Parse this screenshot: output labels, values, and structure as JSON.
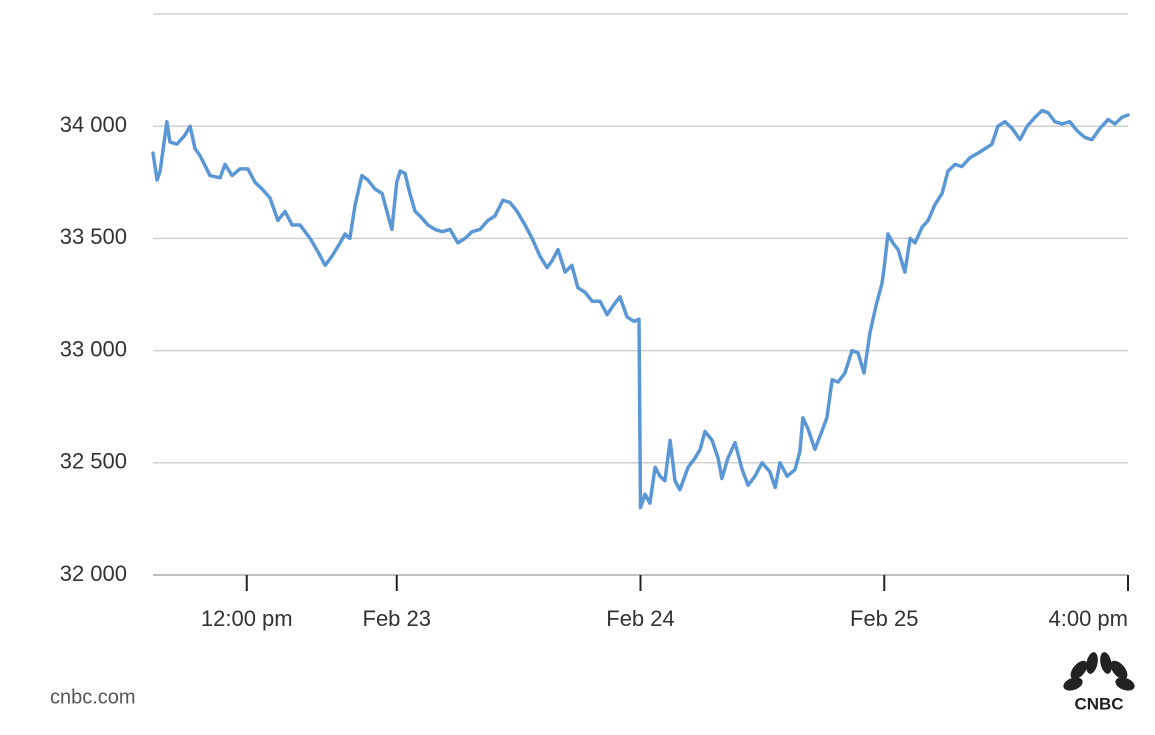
{
  "chart_data": {
    "type": "line",
    "color": "#5b97d5",
    "grid": true,
    "ylim": [
      32000,
      34500
    ],
    "yticks": [
      {
        "value": 32000,
        "label": "32 000"
      },
      {
        "value": 32500,
        "label": "32 500"
      },
      {
        "value": 33000,
        "label": "33 000"
      },
      {
        "value": 33500,
        "label": "33 500"
      },
      {
        "value": 34000,
        "label": "34 000"
      }
    ],
    "xlim": [
      0,
      26
    ],
    "xticks": [
      {
        "value": 2.5,
        "label": "12:00 pm"
      },
      {
        "value": 6.5,
        "label": "Feb 23"
      },
      {
        "value": 13,
        "label": "Feb 24"
      },
      {
        "value": 19.5,
        "label": "Feb 25"
      },
      {
        "value": 26,
        "label": "4:00 pm"
      }
    ],
    "x": [
      0,
      0.11,
      0.19,
      0.37,
      0.45,
      0.64,
      0.85,
      0.99,
      1.12,
      1.25,
      1.52,
      1.79,
      1.92,
      2.11,
      2.32,
      2.53,
      2.72,
      2.91,
      3.12,
      3.33,
      3.52,
      3.71,
      3.92,
      4.19,
      4.4,
      4.59,
      4.77,
      4.99,
      5.12,
      5.25,
      5.39,
      5.57,
      5.73,
      5.92,
      6.11,
      6.27,
      6.37,
      6.5,
      6.59,
      6.72,
      6.85,
      6.99,
      7.12,
      7.33,
      7.52,
      7.71,
      7.92,
      8.13,
      8.32,
      8.51,
      8.72,
      8.93,
      9.12,
      9.33,
      9.52,
      9.71,
      9.92,
      10.11,
      10.32,
      10.51,
      10.64,
      10.8,
      10.99,
      11.17,
      11.33,
      11.52,
      11.71,
      11.92,
      12.11,
      12.27,
      12.45,
      12.64,
      12.83,
      12.96,
      13.0,
      13.12,
      13.25,
      13.39,
      13.52,
      13.65,
      13.79,
      13.92,
      14.05,
      14.27,
      14.45,
      14.59,
      14.72,
      14.91,
      15.07,
      15.17,
      15.33,
      15.52,
      15.71,
      15.87,
      16.05,
      16.24,
      16.45,
      16.59,
      16.72,
      16.91,
      17.12,
      17.25,
      17.33,
      17.47,
      17.65,
      17.79,
      17.97,
      18.11,
      18.27,
      18.45,
      18.64,
      18.8,
      18.96,
      19.12,
      19.28,
      19.44,
      19.49,
      19.6,
      19.73,
      19.87,
      20.05,
      20.19,
      20.32,
      20.51,
      20.67,
      20.85,
      21.04,
      21.2,
      21.39,
      21.57,
      21.79,
      22.0,
      22.19,
      22.37,
      22.53,
      22.72,
      22.91,
      23.12,
      23.31,
      23.52,
      23.71,
      23.87,
      24.05,
      24.24,
      24.45,
      24.64,
      24.85,
      25.04,
      25.25,
      25.47,
      25.65,
      25.84,
      26
    ],
    "values": [
      33880,
      33760,
      33800,
      34020,
      33930,
      33920,
      33960,
      34000,
      33900,
      33870,
      33780,
      33770,
      33830,
      33780,
      33810,
      33810,
      33750,
      33720,
      33680,
      33580,
      33620,
      33560,
      33560,
      33500,
      33440,
      33380,
      33420,
      33480,
      33520,
      33500,
      33650,
      33780,
      33760,
      33720,
      33700,
      33600,
      33540,
      33750,
      33800,
      33790,
      33700,
      33620,
      33600,
      33560,
      33540,
      33530,
      33540,
      33480,
      33500,
      33530,
      33540,
      33580,
      33600,
      33670,
      33660,
      33620,
      33560,
      33500,
      33420,
      33370,
      33400,
      33450,
      33350,
      33380,
      33280,
      33260,
      33220,
      33220,
      33160,
      33200,
      33240,
      33150,
      33130,
      33140,
      32300,
      32360,
      32320,
      32480,
      32440,
      32420,
      32600,
      32420,
      32380,
      32480,
      32520,
      32560,
      32640,
      32600,
      32520,
      32430,
      32520,
      32590,
      32470,
      32400,
      32440,
      32500,
      32460,
      32390,
      32500,
      32440,
      32470,
      32550,
      32700,
      32650,
      32560,
      32620,
      32700,
      32870,
      32860,
      32900,
      33000,
      32990,
      32900,
      33080,
      33200,
      33300,
      33360,
      33520,
      33480,
      33450,
      33350,
      33500,
      33480,
      33550,
      33580,
      33650,
      33700,
      33800,
      33830,
      33820,
      33860,
      33880,
      33900,
      33920,
      34000,
      34020,
      33990,
      33940,
      34000,
      34040,
      34070,
      34060,
      34020,
      34010,
      34020,
      33980,
      33950,
      33940,
      33990,
      34030,
      34010,
      34040,
      34050
    ]
  },
  "footer": {
    "source": "cnbc.com",
    "logo": "CNBC"
  }
}
